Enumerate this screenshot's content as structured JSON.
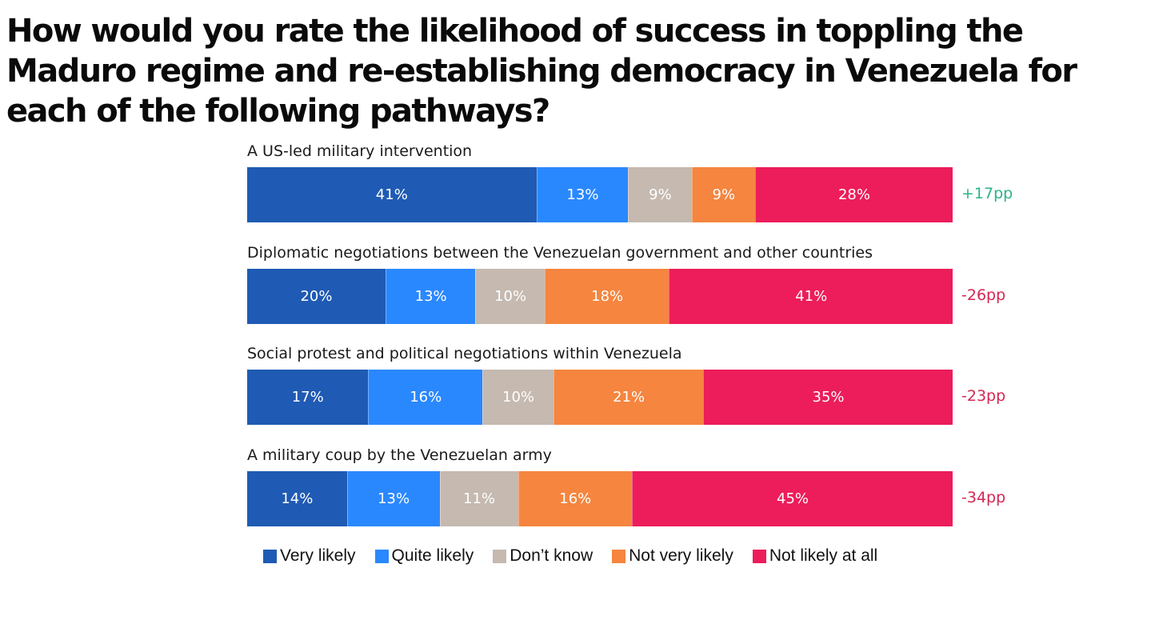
{
  "chart_data": {
    "type": "bar",
    "orientation": "horizontal",
    "stacked": true,
    "normalized": true,
    "title": "How would you rate the likelihood of success in toppling the Maduro regime and re-establishing democracy in Venezuela for each of the following pathways?",
    "xlabel": "",
    "ylabel": "",
    "grid": false,
    "legend_position": "bottom",
    "categories": [
      "A US-led military intervention",
      "Diplomatic negotiations between the Venezuelan government and other countries",
      "Social protest and political negotiations within Venezuela",
      "A military coup by the Venezuelan army"
    ],
    "series": [
      {
        "name": "Very likely",
        "color": "#1f5ab4",
        "values": [
          41,
          20,
          17,
          14
        ]
      },
      {
        "name": "Quite likely",
        "color": "#2a88ff",
        "values": [
          13,
          13,
          16,
          13
        ]
      },
      {
        "name": "Don’t know",
        "color": "#c5b9b0",
        "values": [
          9,
          10,
          10,
          11
        ]
      },
      {
        "name": "Not very likely",
        "color": "#f5853f",
        "values": [
          9,
          18,
          21,
          16
        ]
      },
      {
        "name": "Not likely at all",
        "color": "#ec1d5a",
        "values": [
          28,
          41,
          35,
          45
        ]
      }
    ],
    "value_labels": [
      [
        "41%",
        "13%",
        "9%",
        "9%",
        "28%"
      ],
      [
        "20%",
        "13%",
        "10%",
        "18%",
        "41%"
      ],
      [
        "17%",
        "16%",
        "10%",
        "21%",
        "35%"
      ],
      [
        "14%",
        "13%",
        "11%",
        "16%",
        "45%"
      ]
    ],
    "net_scores": [
      {
        "label": "+17pp",
        "value": 17,
        "color": "#2bb38a"
      },
      {
        "label": "-26pp",
        "value": -26,
        "color": "#d62652"
      },
      {
        "label": "-23pp",
        "value": -23,
        "color": "#d62652"
      },
      {
        "label": "-34pp",
        "value": -34,
        "color": "#d62652"
      }
    ]
  }
}
